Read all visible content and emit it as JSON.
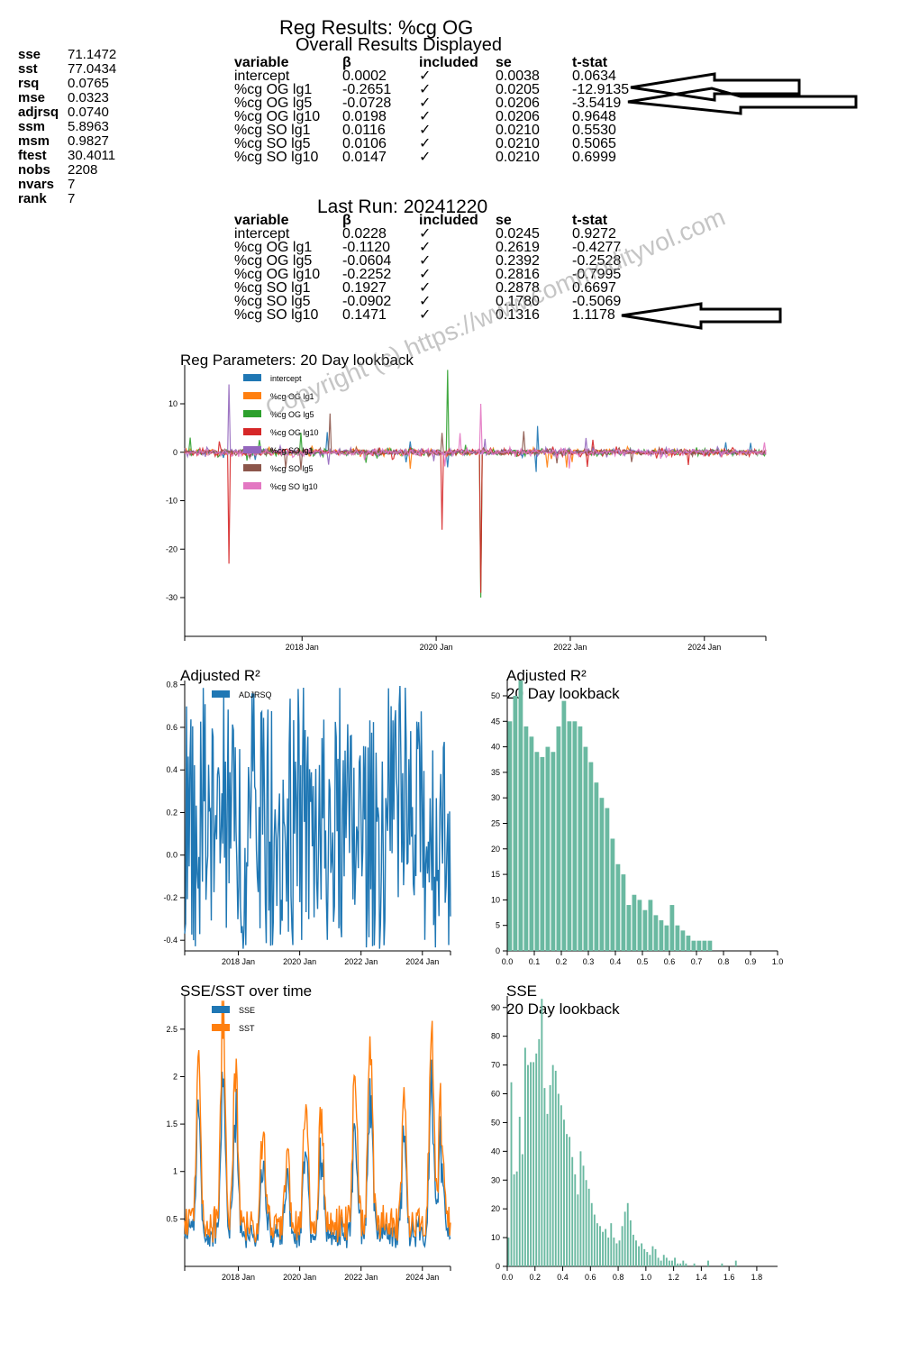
{
  "stats": [
    {
      "k": "sse",
      "v": "71.1472"
    },
    {
      "k": "sst",
      "v": "77.0434"
    },
    {
      "k": "rsq",
      "v": "0.0765"
    },
    {
      "k": "mse",
      "v": "0.0323"
    },
    {
      "k": "adjrsq",
      "v": "0.0740"
    },
    {
      "k": "ssm",
      "v": "5.8963"
    },
    {
      "k": "msm",
      "v": "0.9827"
    },
    {
      "k": "ftest",
      "v": "30.4011"
    },
    {
      "k": "nobs",
      "v": "2208"
    },
    {
      "k": "nvars",
      "v": "7"
    },
    {
      "k": "rank",
      "v": "7"
    }
  ],
  "header": {
    "title": "Reg Results: %cg OG",
    "subtitle": "Overall Results Displayed",
    "last_run": "Last Run: 20241220"
  },
  "table_headers": [
    "variable",
    "β",
    "included",
    "se",
    "t-stat"
  ],
  "overall_rows": [
    [
      "intercept",
      "0.0002",
      "✓",
      "0.0038",
      "0.0634"
    ],
    [
      "%cg OG lg1",
      "-0.2651",
      "✓",
      "0.0205",
      "-12.9135"
    ],
    [
      "%cg OG lg5",
      "-0.0728",
      "✓",
      "0.0206",
      "-3.5419"
    ],
    [
      "%cg OG lg10",
      "0.0198",
      "✓",
      "0.0206",
      "0.9648"
    ],
    [
      "%cg SO lg1",
      "0.0116",
      "✓",
      "0.0210",
      "0.5530"
    ],
    [
      "%cg SO lg5",
      "0.0106",
      "✓",
      "0.0210",
      "0.5065"
    ],
    [
      "%cg SO lg10",
      "0.0147",
      "✓",
      "0.0210",
      "0.6999"
    ]
  ],
  "last_rows": [
    [
      "intercept",
      "0.0228",
      "✓",
      "0.0245",
      "0.9272"
    ],
    [
      "%cg OG lg1",
      "-0.1120",
      "✓",
      "0.2619",
      "-0.4277"
    ],
    [
      "%cg OG lg5",
      "-0.0604",
      "✓",
      "0.2392",
      "-0.2528"
    ],
    [
      "%cg OG lg10",
      "-0.2252",
      "✓",
      "0.2816",
      "-0.7995"
    ],
    [
      "%cg SO lg1",
      "0.1927",
      "✓",
      "0.2878",
      "0.6697"
    ],
    [
      "%cg SO lg5",
      "-0.0902",
      "✓",
      "0.1780",
      "-0.5069"
    ],
    [
      "%cg SO lg10",
      "0.1471",
      "✓",
      "0.1316",
      "1.1178"
    ]
  ],
  "watermark": "Copyright (c) https://www.commodityvol.com",
  "colors": {
    "blue": "#1f77b4",
    "orange": "#ff7f0e",
    "green": "#2ca02c",
    "red": "#d62728",
    "purple": "#9467bd",
    "brown": "#8c564b",
    "pink": "#e377c2",
    "hist": "#6ab9a1"
  },
  "chart_data": [
    {
      "type": "line",
      "title": "Reg Parameters: 20 Day lookback",
      "x_ticks": [
        "2018 Jan",
        "2020 Jan",
        "2022 Jan",
        "2024 Jan"
      ],
      "x_range": [
        "2016-04",
        "2024-12"
      ],
      "y_ticks": [
        10,
        0,
        -10,
        -20,
        -30
      ],
      "ylim": [
        -38,
        18
      ],
      "legend": "top-left",
      "series": [
        {
          "name": "intercept",
          "spikes": []
        },
        {
          "name": "%cg OG lg1",
          "spikes": []
        },
        {
          "name": "%cg OG lg5",
          "spikes": [
            {
              "x": "2020-03",
              "y": 17
            },
            {
              "x": "2020-09",
              "y": -30
            },
            {
              "x": "2016-05",
              "y": 3
            }
          ]
        },
        {
          "name": "%cg OG lg10",
          "spikes": [
            {
              "x": "2016-12",
              "y": -23
            },
            {
              "x": "2020-09",
              "y": -29
            },
            {
              "x": "2020-02",
              "y": -16
            },
            {
              "x": "2022-04",
              "y": -3
            }
          ]
        },
        {
          "name": "%cg SO lg1",
          "spikes": [
            {
              "x": "2016-12",
              "y": 14
            }
          ]
        },
        {
          "name": "%cg SO lg5",
          "spikes": [
            {
              "x": "2018-06",
              "y": 8
            },
            {
              "x": "2020-02",
              "y": 4
            }
          ]
        },
        {
          "name": "%cg SO lg10",
          "spikes": [
            {
              "x": "2020-09",
              "y": 10
            }
          ]
        }
      ]
    },
    {
      "type": "line",
      "title": "Adjusted R²",
      "x_ticks": [
        "2018 Jan",
        "2020 Jan",
        "2022 Jan",
        "2024 Jan"
      ],
      "x_range": [
        "2016-04",
        "2024-12"
      ],
      "y_ticks": [
        0.8,
        0.6,
        0.4,
        0.2,
        0.0,
        -0.2,
        -0.4
      ],
      "ylim": [
        -0.45,
        0.82
      ],
      "series": [
        {
          "name": "ADJRSQ"
        }
      ]
    },
    {
      "type": "bar",
      "title": "Adjusted R²",
      "subtitle": "20 Day lookback",
      "x_ticks": [
        0.0,
        0.1,
        0.2,
        0.3,
        0.4,
        0.5,
        0.6,
        0.7,
        0.8,
        0.9,
        1.0
      ],
      "y_ticks": [
        0,
        5,
        10,
        15,
        20,
        25,
        30,
        35,
        40,
        45,
        50
      ],
      "xlim": [
        0,
        1
      ],
      "ylim": [
        0,
        53
      ],
      "bin_width": 0.02,
      "values": [
        45,
        50,
        53,
        44,
        42,
        39,
        38,
        40,
        39,
        44,
        49,
        45,
        45,
        44,
        40,
        37,
        33,
        30,
        28,
        22,
        17,
        15,
        9,
        11,
        10,
        8,
        10,
        7,
        6,
        5,
        9,
        5,
        4,
        3,
        2,
        2,
        2,
        2
      ]
    },
    {
      "type": "line",
      "title": "SSE/SST over time",
      "x_ticks": [
        "2018 Jan",
        "2020 Jan",
        "2022 Jan",
        "2024 Jan"
      ],
      "x_range": [
        "2016-04",
        "2024-12"
      ],
      "y_ticks": [
        2.5,
        2.0,
        1.5,
        1.0,
        0.5
      ],
      "ylim": [
        0,
        2.85
      ],
      "series": [
        {
          "name": "SSE"
        },
        {
          "name": "SST"
        }
      ]
    },
    {
      "type": "bar",
      "title": "SSE",
      "subtitle": "20 Day lookback",
      "x_ticks": [
        0.0,
        0.2,
        0.4,
        0.6,
        0.8,
        1.0,
        1.2,
        1.4,
        1.6,
        1.8
      ],
      "y_ticks": [
        0,
        10,
        20,
        30,
        40,
        50,
        60,
        70,
        80,
        90
      ],
      "xlim": [
        0,
        1.95
      ],
      "ylim": [
        0,
        94
      ],
      "bin_width": 0.02,
      "values": [
        10,
        64,
        32,
        33,
        52,
        39,
        76,
        70,
        71,
        71,
        74,
        79,
        93,
        62,
        53,
        63,
        70,
        68,
        60,
        56,
        51,
        46,
        45,
        38,
        32,
        25,
        40,
        35,
        30,
        27,
        22,
        18,
        15,
        14,
        12,
        13,
        10,
        15,
        10,
        8,
        9,
        14,
        19,
        22,
        16,
        11,
        9,
        7,
        8,
        6,
        5,
        4,
        7,
        6,
        3,
        2,
        4,
        3,
        2,
        2,
        3,
        1,
        1,
        2,
        1,
        0,
        0,
        1,
        0,
        0,
        0,
        0,
        2,
        0,
        0,
        0,
        0,
        1,
        0,
        0,
        0,
        0,
        2
      ]
    }
  ]
}
